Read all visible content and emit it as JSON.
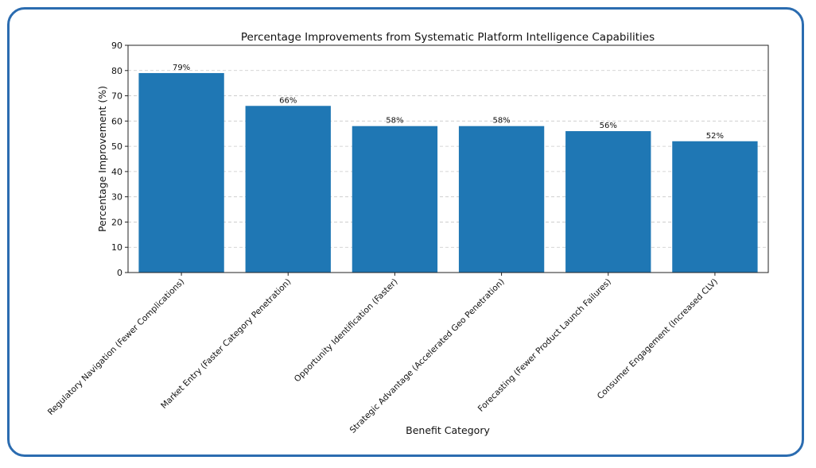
{
  "chart_data": {
    "type": "bar",
    "title": "Percentage Improvements from Systematic Platform Intelligence Capabilities",
    "xlabel": "Benefit Category",
    "ylabel": "Percentage Improvement (%)",
    "ylim": [
      0,
      90
    ],
    "yticks": [
      0,
      10,
      20,
      30,
      40,
      50,
      60,
      70,
      80,
      90
    ],
    "grid": "y-dashed",
    "bar_color": "#1f77b4",
    "categories": [
      "Regulatory Navigation (Fewer Complications)",
      "Market Entry (Faster Category Penetration)",
      "Opportunity Identification (Faster)",
      "Strategic Advantage (Accelerated Geo Penetration)",
      "Forecasting (Fewer Product Launch Failures)",
      "Consumer Engagement (Increased CLV)"
    ],
    "values": [
      79,
      66,
      58,
      58,
      56,
      52
    ],
    "data_labels": [
      "79%",
      "66%",
      "58%",
      "58%",
      "56%",
      "52%"
    ]
  }
}
